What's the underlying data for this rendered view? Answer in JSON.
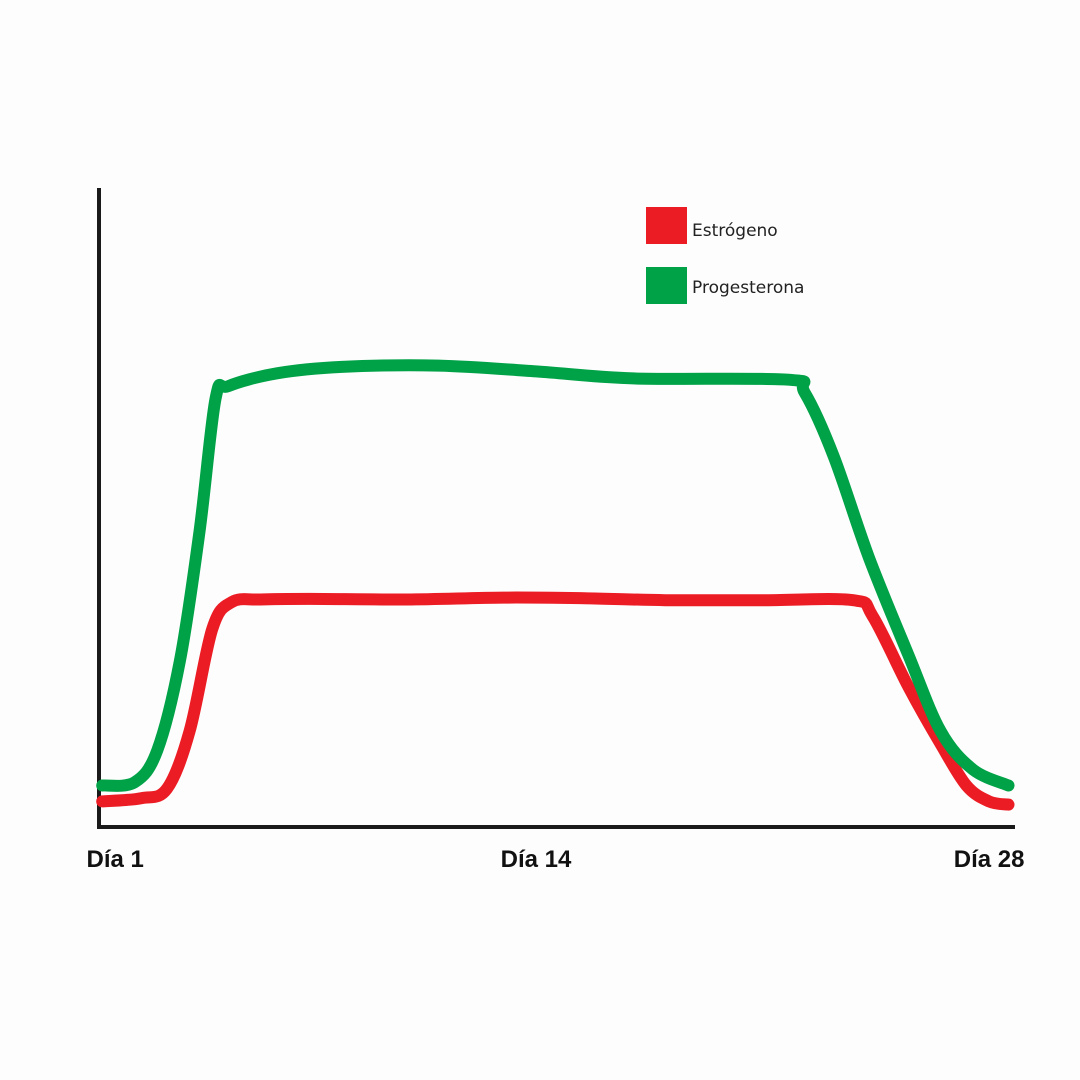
{
  "chart_data": {
    "type": "line",
    "x_tick_labels": [
      "Día 1",
      "Día 14",
      "Día 28"
    ],
    "x_tick_values": [
      1,
      14,
      28
    ],
    "xlim": [
      0.5,
      28.8
    ],
    "ylim": [
      0,
      100
    ],
    "grid": false,
    "legend_position": "top-right",
    "series": [
      {
        "name": "Estrógeno",
        "color": "#ec1c24",
        "points": [
          [
            0.6,
            4
          ],
          [
            1.8,
            4.5
          ],
          [
            2.6,
            6
          ],
          [
            3.3,
            15
          ],
          [
            4.0,
            31
          ],
          [
            4.6,
            35.2
          ],
          [
            5.5,
            35.6
          ],
          [
            7.0,
            35.7
          ],
          [
            10.0,
            35.6
          ],
          [
            13.0,
            35.9
          ],
          [
            15.5,
            35.8
          ],
          [
            18.0,
            35.5
          ],
          [
            21.0,
            35.5
          ],
          [
            23.8,
            35.5
          ],
          [
            24.4,
            33
          ],
          [
            25.5,
            22
          ],
          [
            26.5,
            13
          ],
          [
            27.3,
            6.5
          ],
          [
            28.0,
            4
          ],
          [
            28.6,
            3.5
          ]
        ]
      },
      {
        "name": "Progesterona",
        "color": "#00a247",
        "points": [
          [
            0.6,
            6.5
          ],
          [
            1.6,
            7
          ],
          [
            2.3,
            12
          ],
          [
            3.0,
            26
          ],
          [
            3.6,
            46
          ],
          [
            4.1,
            67
          ],
          [
            4.5,
            69
          ],
          [
            6.0,
            71
          ],
          [
            8.0,
            72
          ],
          [
            11.0,
            72.2
          ],
          [
            14.0,
            71.3
          ],
          [
            17.0,
            70.2
          ],
          [
            21.8,
            70
          ],
          [
            22.3,
            68
          ],
          [
            23.2,
            58
          ],
          [
            24.3,
            42
          ],
          [
            25.5,
            27
          ],
          [
            26.5,
            15
          ],
          [
            27.5,
            9
          ],
          [
            28.6,
            6.5
          ]
        ]
      }
    ]
  }
}
